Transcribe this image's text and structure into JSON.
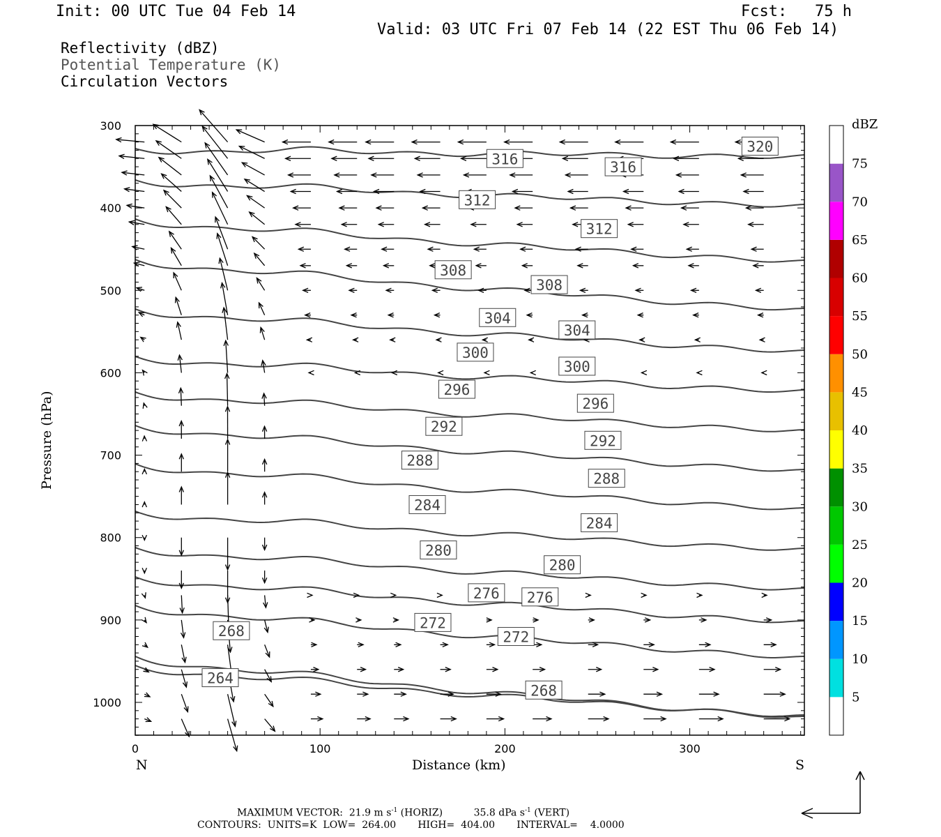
{
  "header": {
    "init": "Init: 00 UTC Tue 04 Feb 14",
    "fcst": "Fcst:   75 h",
    "valid": "Valid: 03 UTC Fri 07 Feb 14 (22 EST Thu 06 Feb 14)"
  },
  "legend": {
    "line1": "Reflectivity (dBZ)",
    "line2": "Potential Temperature (K)",
    "line3": "Circulation Vectors"
  },
  "footer": {
    "max_label": "MAXIMUM VECTOR:",
    "horiz": "21.9 m s",
    "horiz_sup": "-1",
    "horiz_tag": "(HORIZ)",
    "vert": "35.8 dPa s",
    "vert_sup": "-1",
    "vert_tag": "(VERT)",
    "contours": "CONTOURS:  UNITS=K  LOW=  264.00       HIGH=  404.00       INTERVAL=    4.0000"
  },
  "colorbar": {
    "unit": "dBZ",
    "labels": [
      "5",
      "10",
      "15",
      "20",
      "25",
      "30",
      "35",
      "40",
      "45",
      "50",
      "55",
      "60",
      "65",
      "70",
      "75"
    ],
    "colors": [
      "#00e0e0",
      "#0096ff",
      "#0000ff",
      "#00ff00",
      "#00c800",
      "#009000",
      "#ffff00",
      "#e8c000",
      "#ff9000",
      "#ff0000",
      "#d80000",
      "#b00000",
      "#ff00ff",
      "#9955c8"
    ]
  },
  "chart_data": {
    "type": "cross-section contour + vectors",
    "xlabel": "Distance (km)",
    "ylabel": "Pressure (hPa)",
    "x_ticks": [
      "0",
      "100",
      "200",
      "300"
    ],
    "y_ticks": [
      "300",
      "400",
      "500",
      "600",
      "700",
      "800",
      "900",
      "1000"
    ],
    "xlim": [
      0,
      362
    ],
    "ylim": [
      1040,
      300
    ],
    "x_end_labels": {
      "left": "N",
      "right": "S"
    },
    "contour_labels": [
      {
        "text": "320",
        "x": 338,
        "p": 325
      },
      {
        "text": "316",
        "x": 200,
        "p": 340
      },
      {
        "text": "316",
        "x": 264,
        "p": 350
      },
      {
        "text": "312",
        "x": 185,
        "p": 390
      },
      {
        "text": "312",
        "x": 251,
        "p": 425
      },
      {
        "text": "308",
        "x": 172,
        "p": 475
      },
      {
        "text": "308",
        "x": 224,
        "p": 493
      },
      {
        "text": "304",
        "x": 196,
        "p": 533
      },
      {
        "text": "304",
        "x": 239,
        "p": 548
      },
      {
        "text": "300",
        "x": 184,
        "p": 575
      },
      {
        "text": "300",
        "x": 239,
        "p": 592
      },
      {
        "text": "296",
        "x": 174,
        "p": 620
      },
      {
        "text": "296",
        "x": 249,
        "p": 637
      },
      {
        "text": "292",
        "x": 167,
        "p": 665
      },
      {
        "text": "292",
        "x": 253,
        "p": 682
      },
      {
        "text": "288",
        "x": 154,
        "p": 706
      },
      {
        "text": "288",
        "x": 255,
        "p": 728
      },
      {
        "text": "284",
        "x": 158,
        "p": 760
      },
      {
        "text": "284",
        "x": 251,
        "p": 782
      },
      {
        "text": "280",
        "x": 164,
        "p": 815
      },
      {
        "text": "280",
        "x": 231,
        "p": 833
      },
      {
        "text": "276",
        "x": 190,
        "p": 867
      },
      {
        "text": "276",
        "x": 219,
        "p": 872
      },
      {
        "text": "272",
        "x": 161,
        "p": 903
      },
      {
        "text": "272",
        "x": 206,
        "p": 920
      },
      {
        "text": "268",
        "x": 52,
        "p": 913
      },
      {
        "text": "268",
        "x": 221,
        "p": 985
      },
      {
        "text": "264",
        "x": 46,
        "p": 970
      }
    ],
    "theta_levels": [
      264,
      268,
      272,
      276,
      280,
      284,
      288,
      292,
      296,
      300,
      304,
      308,
      312,
      316,
      320
    ]
  }
}
